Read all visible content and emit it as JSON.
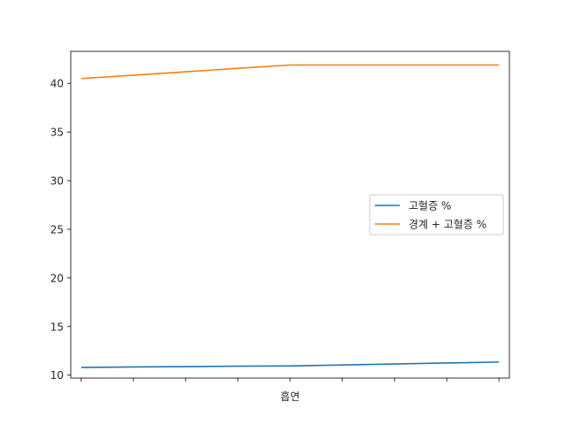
{
  "chart_data": {
    "type": "line",
    "title": "",
    "xlabel": "흡연",
    "ylabel": "",
    "x": [
      0,
      1,
      2,
      3,
      4,
      5,
      6,
      7,
      8
    ],
    "series": [
      {
        "name": "고혈증 %",
        "color": "#1f77b4",
        "values": [
          10.8,
          10.84,
          10.88,
          10.92,
          10.95,
          11.05,
          11.15,
          11.25,
          11.35
        ]
      },
      {
        "name": "경계 + 고혈증 %",
        "color": "#ff7f0e",
        "values": [
          40.5,
          40.85,
          41.2,
          41.55,
          41.9,
          41.9,
          41.9,
          41.9,
          41.9
        ]
      }
    ],
    "xlim": [
      -0.2,
      8.2
    ],
    "ylim": [
      9.7,
      43.3
    ],
    "yticks": [
      10,
      15,
      20,
      25,
      30,
      35,
      40
    ],
    "grid": false,
    "legend": "center-right"
  }
}
